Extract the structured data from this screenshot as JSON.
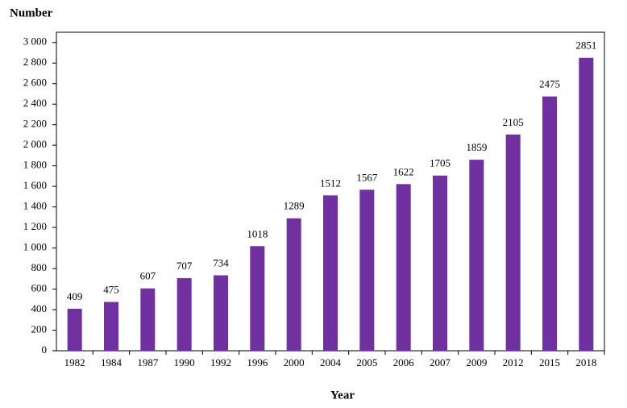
{
  "chart_data": {
    "type": "bar",
    "title": "Number",
    "x_label": "Year",
    "categories": [
      "1982",
      "1984",
      "1987",
      "1990",
      "1992",
      "1996",
      "2000",
      "2004",
      "2005",
      "2006",
      "2007",
      "2009",
      "2012",
      "2015",
      "2018"
    ],
    "values": [
      409,
      475,
      607,
      707,
      734,
      1018,
      1289,
      1512,
      1567,
      1622,
      1705,
      1859,
      2105,
      2475,
      2851
    ],
    "color": "#7030a0",
    "ylim": [
      0,
      3100
    ],
    "yticks": [
      0,
      200,
      400,
      600,
      800,
      {
        "value": 1000,
        "label": "1 000"
      },
      {
        "value": 1200,
        "label": "1 200"
      },
      {
        "value": 1400,
        "label": "1 400"
      },
      {
        "value": 1600,
        "label": "1 600"
      },
      {
        "value": 1800,
        "label": "1 800"
      },
      {
        "value": 2000,
        "label": "2 000"
      },
      {
        "value": 2200,
        "label": "2 200"
      },
      {
        "value": 2400,
        "label": "2 400"
      },
      {
        "value": 2600,
        "label": "2 600"
      },
      {
        "value": 2800,
        "label": "2 800"
      },
      {
        "value": 3000,
        "label": "3 000"
      }
    ],
    "grid": false
  }
}
